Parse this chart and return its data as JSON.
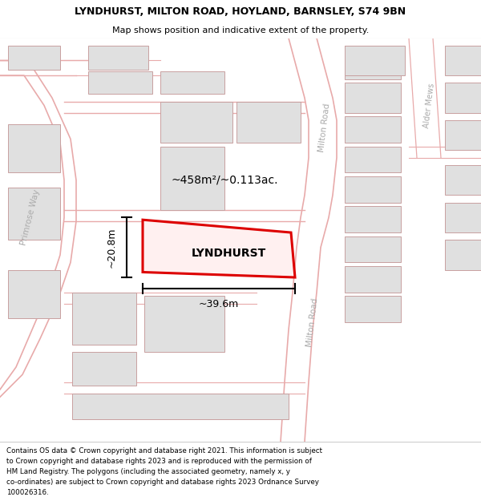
{
  "title_line1": "LYNDHURST, MILTON ROAD, HOYLAND, BARNSLEY, S74 9BN",
  "title_line2": "Map shows position and indicative extent of the property.",
  "footer_lines": [
    "Contains OS data © Crown copyright and database right 2021. This information is subject",
    "to Crown copyright and database rights 2023 and is reproduced with the permission of",
    "HM Land Registry. The polygons (including the associated geometry, namely x, y",
    "co-ordinates) are subject to Crown copyright and database rights 2023 Ordnance Survey",
    "100026316."
  ],
  "map_bg": "#ffffff",
  "road_line_color": "#e8aaaa",
  "building_fill": "#e0e0e0",
  "building_edge": "#c8a0a0",
  "road_label_color": "#aaaaaa",
  "plot_outline_color": "#dd0000",
  "annotation_color": "#111111",
  "area_text": "~458m²/~0.113ac.",
  "width_text": "~39.6m",
  "height_text": "~20.8m",
  "property_label": "LYNDHURST",
  "primrose_way_label": "Primrose Way",
  "milton_road_label": "Milton Road",
  "alder_mews_label": "Alder Mews"
}
